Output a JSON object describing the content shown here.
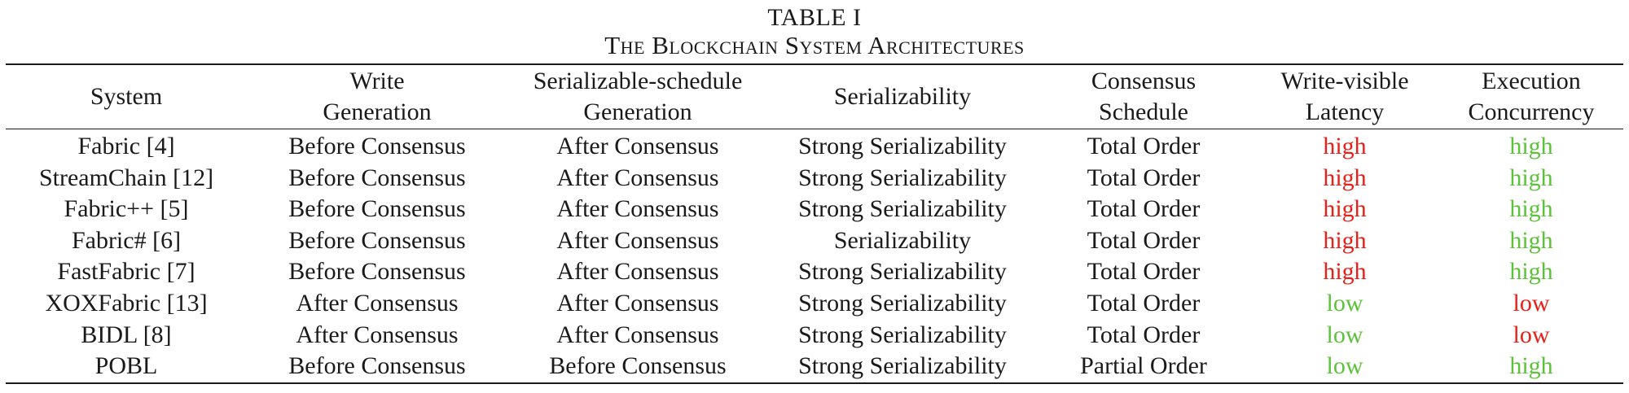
{
  "caption": {
    "label": "TABLE I",
    "title": "The Blockchain System Architectures"
  },
  "colors": {
    "high_red": "#e8201a",
    "low_green": "#5cc23a",
    "text": "#1a1a1a"
  },
  "headers": [
    [
      "System"
    ],
    [
      "Write",
      "Generation"
    ],
    [
      "Serializable-schedule",
      "Generation"
    ],
    [
      "Serializability"
    ],
    [
      "Consensus",
      "Schedule"
    ],
    [
      "Write-visible",
      "Latency"
    ],
    [
      "Execution",
      "Concurrency"
    ]
  ],
  "rows": [
    {
      "system": "Fabric [4]",
      "write_generation": "Before Consensus",
      "schedule_generation": "After Consensus",
      "serializability": "Strong Serializability",
      "consensus_schedule": "Total Order",
      "latency": "high",
      "latency_color": "red",
      "concurrency": "high",
      "concurrency_color": "green"
    },
    {
      "system": "StreamChain [12]",
      "write_generation": "Before Consensus",
      "schedule_generation": "After Consensus",
      "serializability": "Strong Serializability",
      "consensus_schedule": "Total Order",
      "latency": "high",
      "latency_color": "red",
      "concurrency": "high",
      "concurrency_color": "green"
    },
    {
      "system": "Fabric++ [5]",
      "write_generation": "Before Consensus",
      "schedule_generation": "After Consensus",
      "serializability": "Strong Serializability",
      "consensus_schedule": "Total Order",
      "latency": "high",
      "latency_color": "red",
      "concurrency": "high",
      "concurrency_color": "green"
    },
    {
      "system": "Fabric# [6]",
      "write_generation": "Before Consensus",
      "schedule_generation": "After Consensus",
      "serializability": "Serializability",
      "consensus_schedule": "Total Order",
      "latency": "high",
      "latency_color": "red",
      "concurrency": "high",
      "concurrency_color": "green"
    },
    {
      "system": "FastFabric [7]",
      "write_generation": "Before Consensus",
      "schedule_generation": "After Consensus",
      "serializability": "Strong Serializability",
      "consensus_schedule": "Total Order",
      "latency": "high",
      "latency_color": "red",
      "concurrency": "high",
      "concurrency_color": "green"
    },
    {
      "system": "XOXFabric [13]",
      "write_generation": "After Consensus",
      "schedule_generation": "After Consensus",
      "serializability": "Strong Serializability",
      "consensus_schedule": "Total Order",
      "latency": "low",
      "latency_color": "green",
      "concurrency": "low",
      "concurrency_color": "red"
    },
    {
      "system": "BIDL [8]",
      "write_generation": "After Consensus",
      "schedule_generation": "After Consensus",
      "serializability": "Strong Serializability",
      "consensus_schedule": "Total Order",
      "latency": "low",
      "latency_color": "green",
      "concurrency": "low",
      "concurrency_color": "red"
    },
    {
      "system": "POBL",
      "write_generation": "Before Consensus",
      "schedule_generation": "Before Consensus",
      "serializability": "Strong Serializability",
      "consensus_schedule": "Partial Order",
      "latency": "low",
      "latency_color": "green",
      "concurrency": "high",
      "concurrency_color": "green"
    }
  ]
}
